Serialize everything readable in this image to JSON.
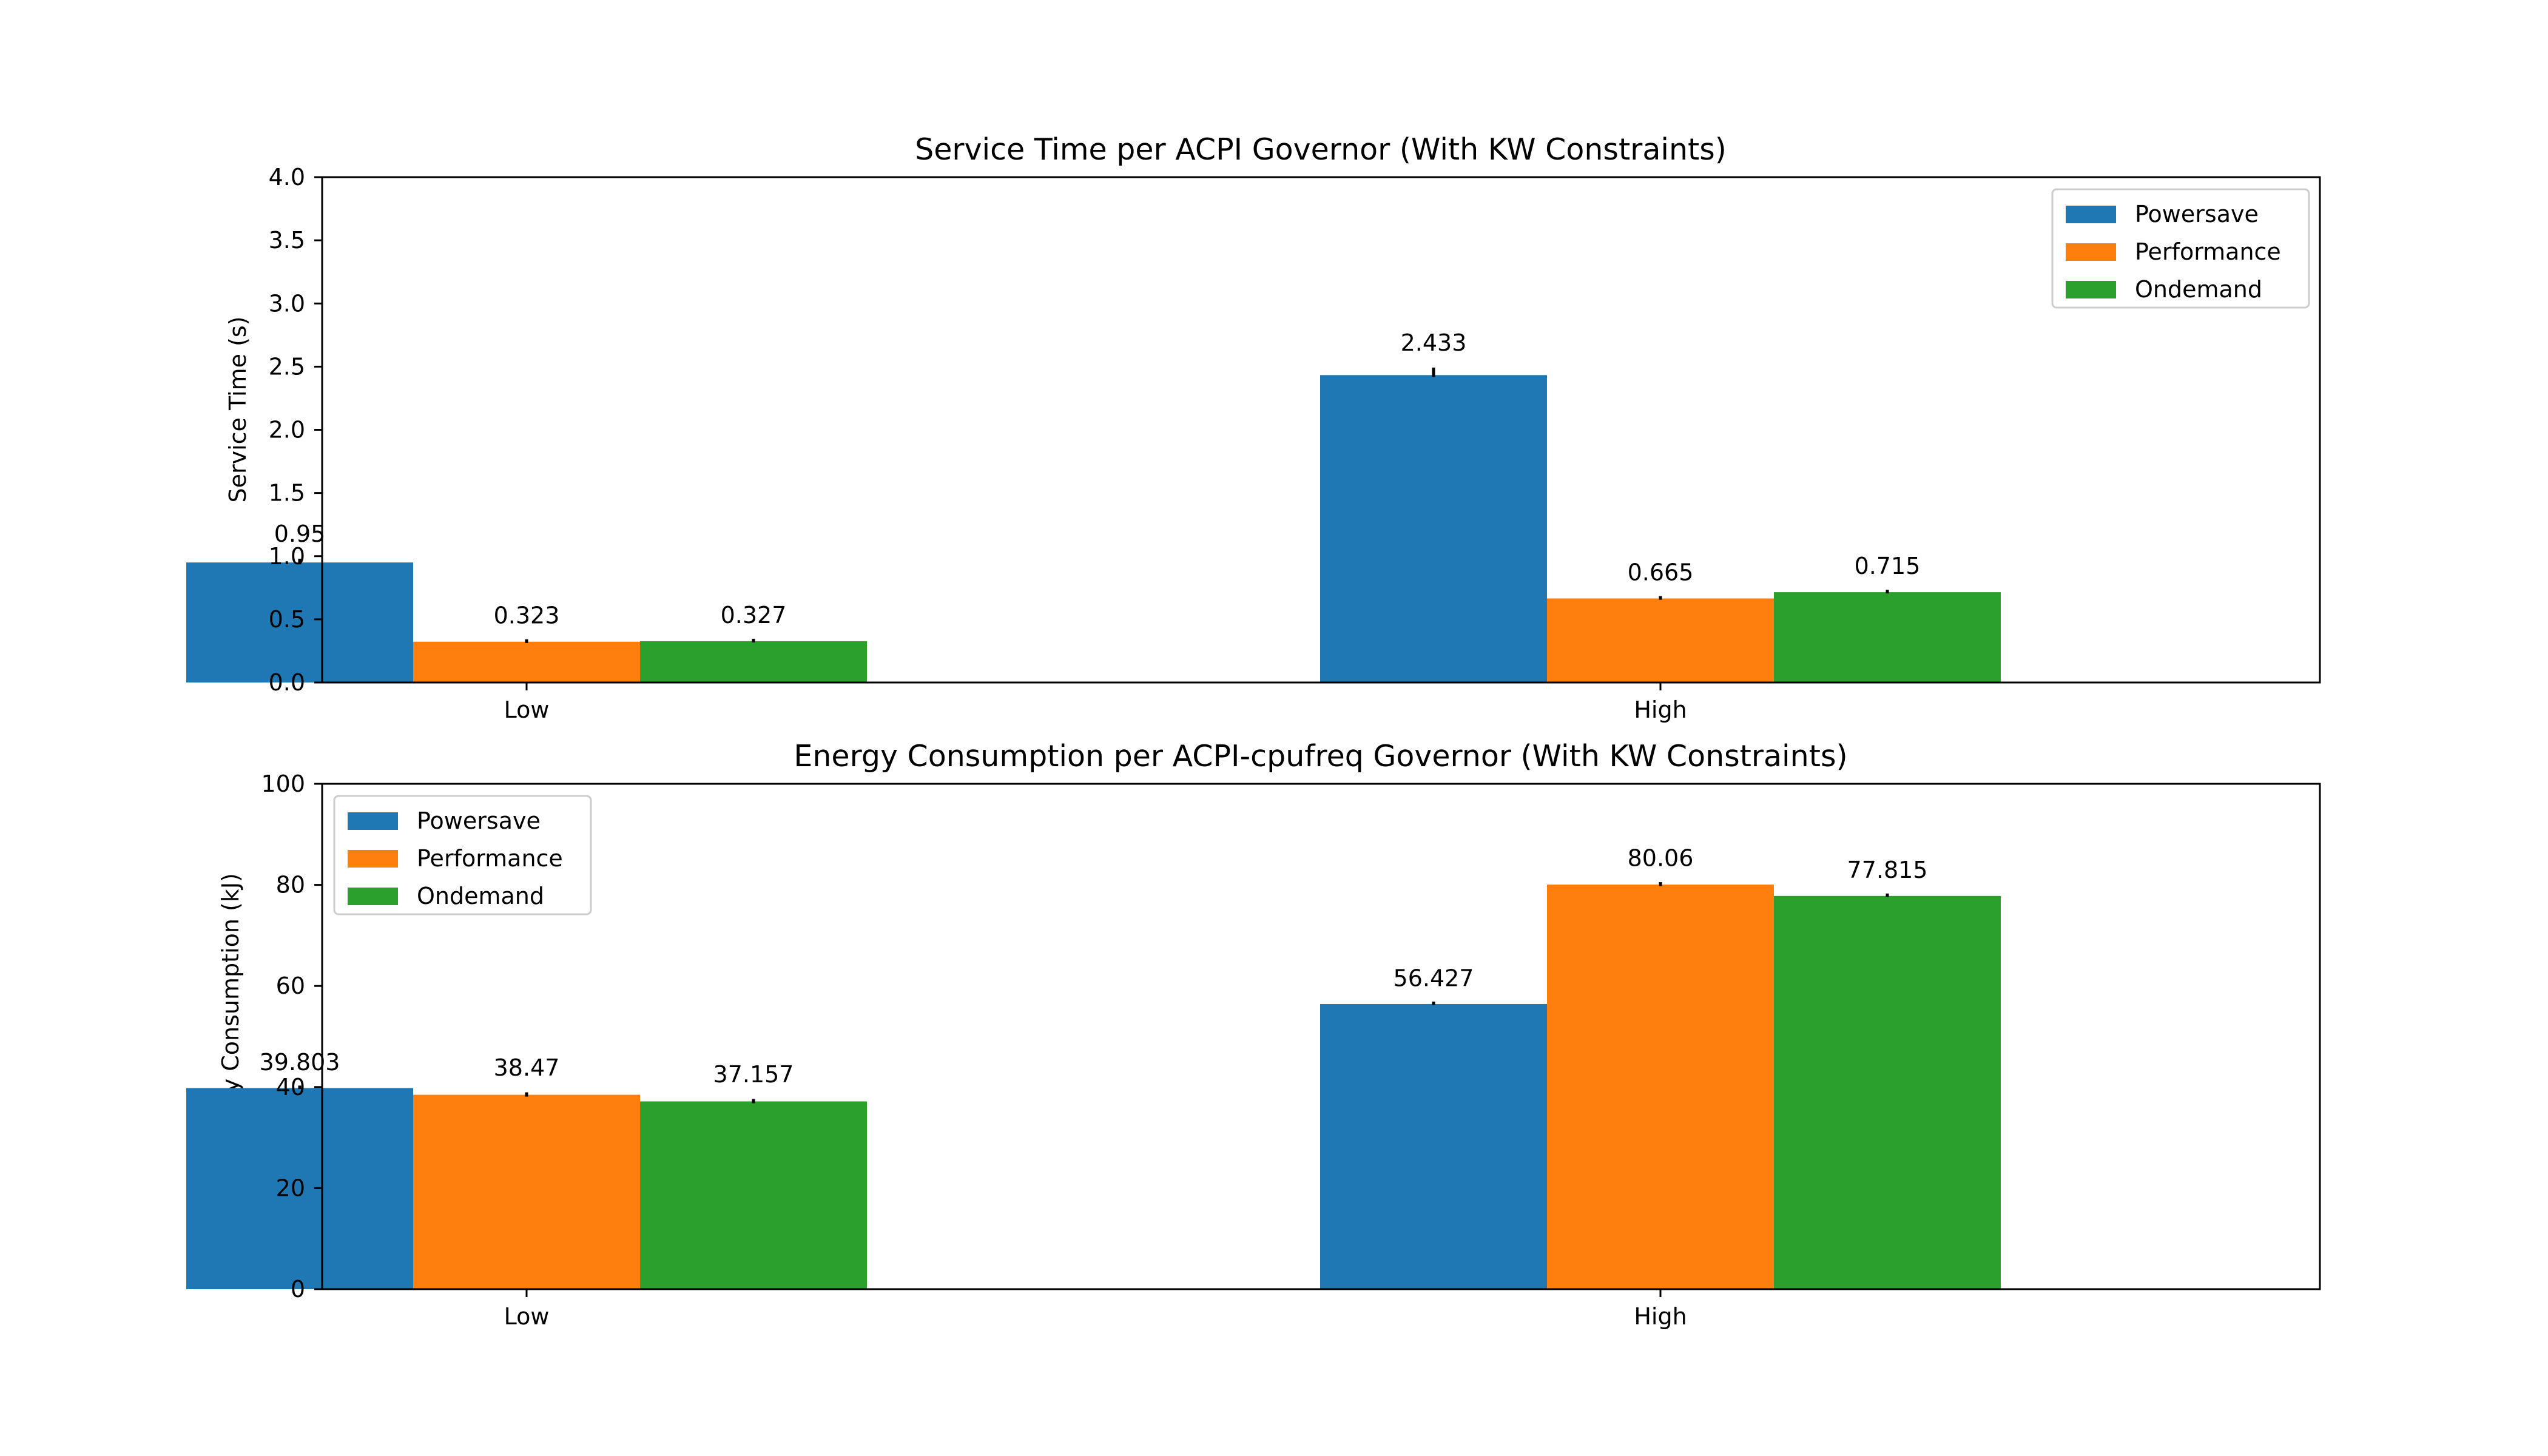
{
  "chart_data": [
    {
      "type": "bar",
      "title": "Service Time per ACPI Governor (With KW Constraints)",
      "xlabel": "",
      "ylabel": "Service Time (s)",
      "categories": [
        "Low",
        "High"
      ],
      "series": [
        {
          "name": "Powersave",
          "values": [
            0.95,
            2.433
          ],
          "color": "#1f77b4"
        },
        {
          "name": "Performance",
          "values": [
            0.323,
            0.665
          ],
          "color": "#ff7f0e"
        },
        {
          "name": "Ondemand",
          "values": [
            0.327,
            0.715
          ],
          "color": "#2ca02c"
        }
      ],
      "value_labels": [
        [
          "0.95",
          "2.433"
        ],
        [
          "0.323",
          "0.665"
        ],
        [
          "0.327",
          "0.715"
        ]
      ],
      "error_bars": [
        [
          0.03,
          0.06
        ],
        [
          0.01,
          0.01
        ],
        [
          0.01,
          0.01
        ]
      ],
      "ylim": [
        0,
        4.0
      ],
      "yticks": [
        "0.0",
        "0.5",
        "1.0",
        "1.5",
        "2.0",
        "2.5",
        "3.0",
        "3.5",
        "4.0"
      ],
      "grid": false,
      "legend": "top-right"
    },
    {
      "type": "bar",
      "title": "Energy Consumption per ACPI-cpufreq Governor (With KW Constraints)",
      "xlabel": "",
      "ylabel": "Energy Consumption (kJ)",
      "categories": [
        "Low",
        "High"
      ],
      "series": [
        {
          "name": "Powersave",
          "values": [
            39.803,
            56.427
          ],
          "color": "#1f77b4"
        },
        {
          "name": "Performance",
          "values": [
            38.47,
            80.06
          ],
          "color": "#ff7f0e"
        },
        {
          "name": "Ondemand",
          "values": [
            37.157,
            77.815
          ],
          "color": "#2ca02c"
        }
      ],
      "value_labels": [
        [
          "39.803",
          "56.427"
        ],
        [
          "38.47",
          "80.06"
        ],
        [
          "37.157",
          "77.815"
        ]
      ],
      "error_bars": [
        [
          0.2,
          0.2
        ],
        [
          0.4,
          0.3
        ],
        [
          0.4,
          0.2
        ]
      ],
      "ylim": [
        0,
        100
      ],
      "yticks": [
        "0",
        "20",
        "40",
        "60",
        "80",
        "100"
      ],
      "grid": false,
      "legend": "top-left"
    }
  ]
}
